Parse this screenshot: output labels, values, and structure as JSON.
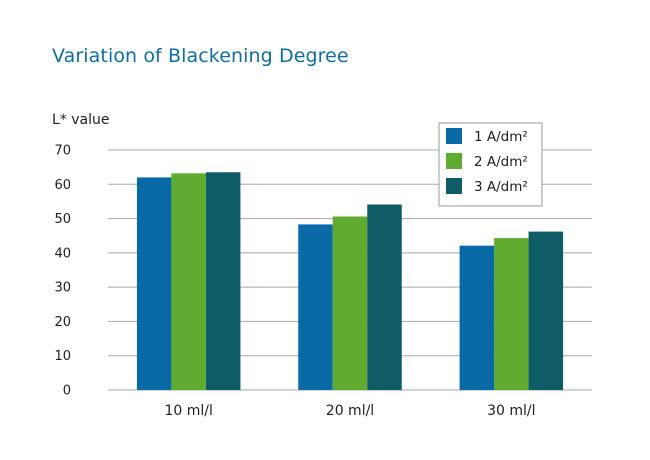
{
  "chart_data": {
    "type": "bar",
    "title": "Variation of Blackening Degree",
    "ylabel": "L* value",
    "xlabel": "",
    "categories": [
      "10 ml/l",
      "20 ml/l",
      "30 ml/l"
    ],
    "series": [
      {
        "name": "1 A/dm²",
        "color": "#0a6aa8",
        "values": [
          62,
          48.3,
          42.1
        ]
      },
      {
        "name": "2 A/dm²",
        "color": "#5fac31",
        "values": [
          63.2,
          50.6,
          44.3
        ]
      },
      {
        "name": "3 A/dm²",
        "color": "#0e5c66",
        "values": [
          63.5,
          54.1,
          46.2
        ]
      }
    ],
    "ylim": [
      0,
      70
    ],
    "yticks": [
      0,
      10,
      20,
      30,
      40,
      50,
      60,
      70
    ],
    "grid": true,
    "legend_position": "top-right"
  }
}
